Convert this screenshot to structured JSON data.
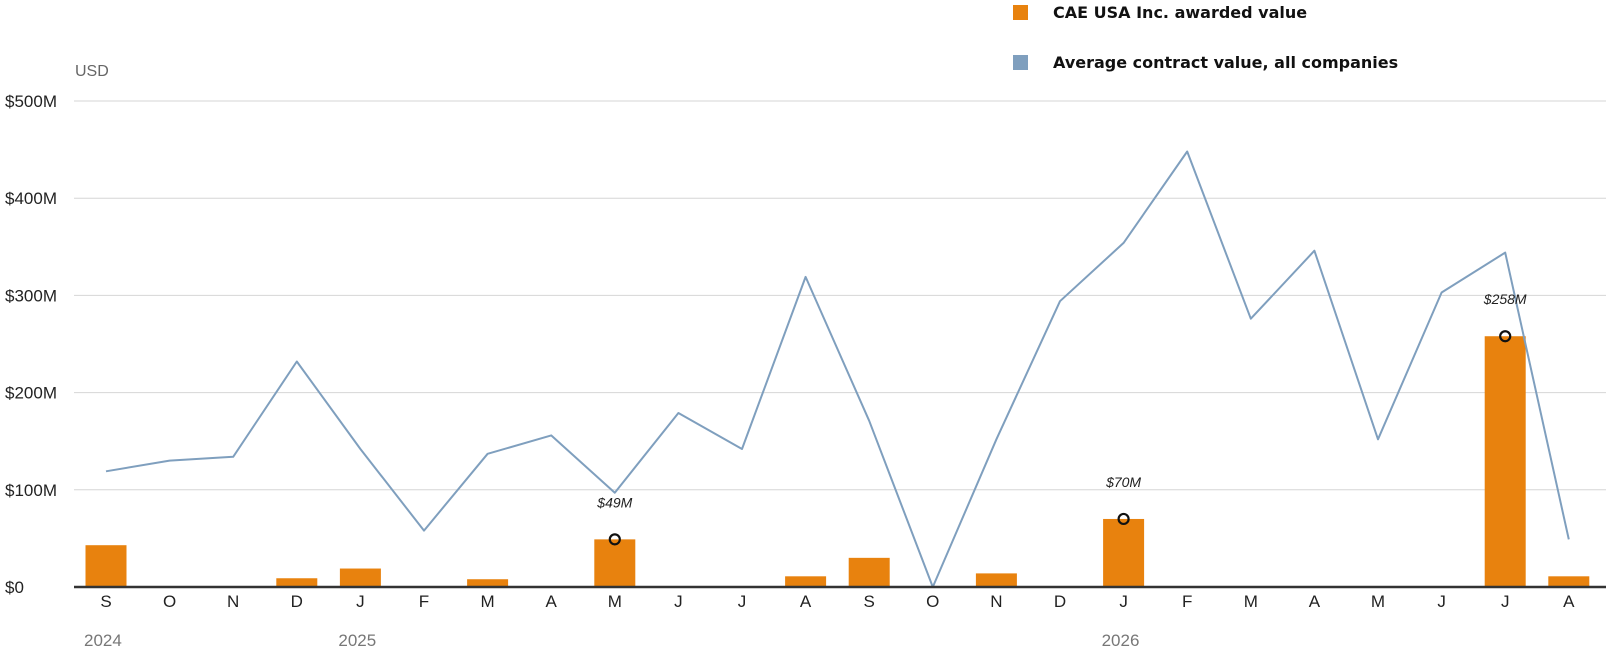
{
  "legend": {
    "items": [
      {
        "label": "CAE USA Inc. awarded value",
        "color": "#E8820E"
      },
      {
        "label": "Average contract value, all companies",
        "color": "#7F9FBE"
      }
    ]
  },
  "chart_data": {
    "type": "bar",
    "unit_label": "USD",
    "ylim": [
      0,
      500
    ],
    "y_ticks": [
      {
        "value": 0,
        "label": "$0"
      },
      {
        "value": 100,
        "label": "$100M"
      },
      {
        "value": 200,
        "label": "$200M"
      },
      {
        "value": 300,
        "label": "$300M"
      },
      {
        "value": 400,
        "label": "$400M"
      },
      {
        "value": 500,
        "label": "$500M"
      }
    ],
    "grid": true,
    "legend_position": "top-right",
    "categories": [
      "S",
      "O",
      "N",
      "D",
      "J",
      "F",
      "M",
      "A",
      "M",
      "J",
      "J",
      "A",
      "S",
      "O",
      "N",
      "D",
      "J",
      "F",
      "M",
      "A",
      "M",
      "J",
      "J",
      "A"
    ],
    "year_labels": [
      {
        "index": 0,
        "label": "2024"
      },
      {
        "index": 4,
        "label": "2025"
      },
      {
        "index": 16,
        "label": "2026"
      }
    ],
    "series": [
      {
        "name": "CAE USA Inc. awarded value",
        "kind": "bar",
        "color": "#E8820E",
        "values": [
          43,
          0,
          0,
          9,
          19,
          0,
          8,
          0,
          49,
          0,
          0,
          11,
          30,
          0,
          14,
          0,
          70,
          0,
          0,
          0,
          0,
          0,
          258,
          11
        ]
      },
      {
        "name": "Average contract value, all companies",
        "kind": "line",
        "color": "#7F9FBE",
        "values": [
          119,
          130,
          134,
          232,
          142,
          58,
          137,
          156,
          97,
          179,
          142,
          319,
          171,
          0,
          152,
          294,
          354,
          448,
          276,
          346,
          152,
          303,
          344,
          49
        ]
      }
    ],
    "annotations": [
      {
        "index": 8,
        "value": 49,
        "label": "$49M"
      },
      {
        "index": 16,
        "value": 70,
        "label": "$70M"
      },
      {
        "index": 22,
        "value": 258,
        "label": "$258M"
      }
    ]
  }
}
